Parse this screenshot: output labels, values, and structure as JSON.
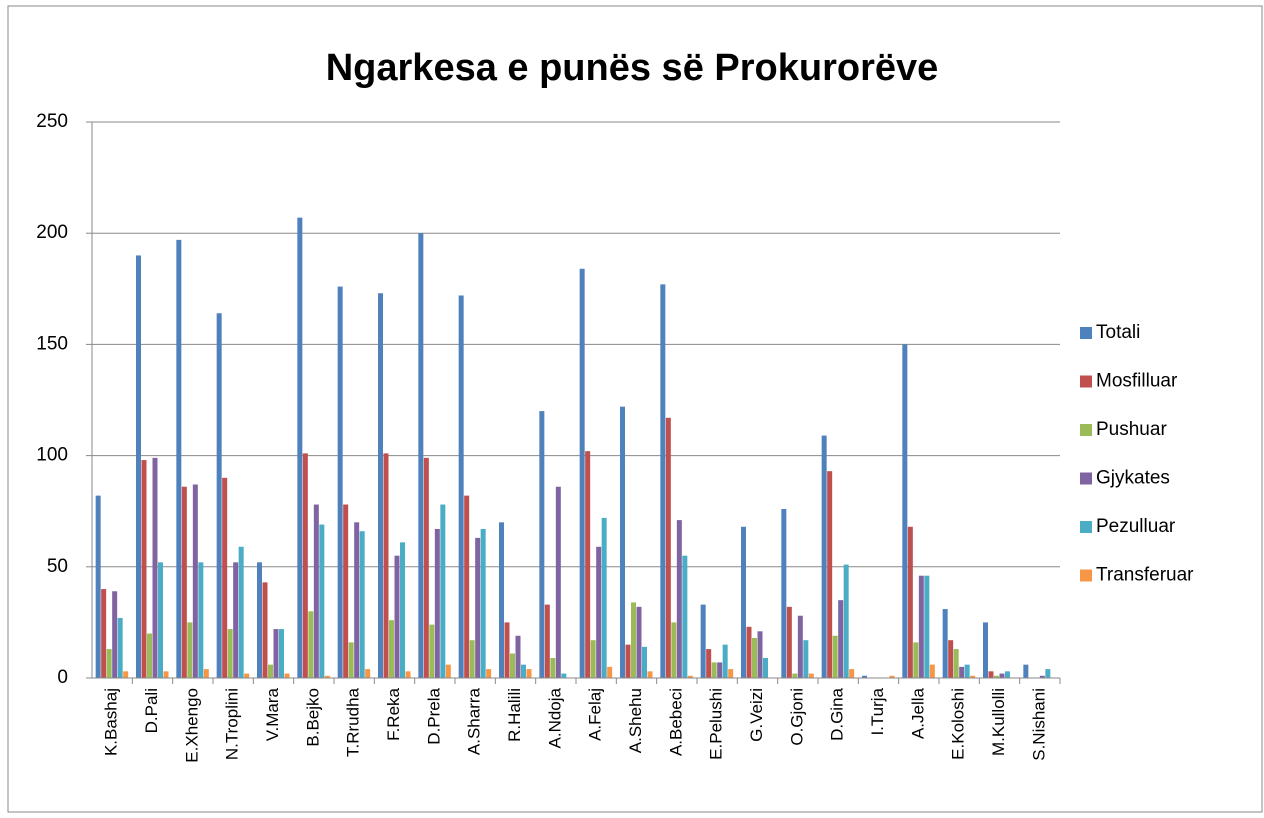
{
  "chart_data": {
    "type": "bar",
    "title": "Ngarkesa e punës së Prokurorëve",
    "categories": [
      "K.Bashaj",
      "D.Pali",
      "E.Xhengo",
      "N.Troplini",
      "V.Mara",
      "B.Bejko",
      "T.Rrudha",
      "F.Reka",
      "D.Prela",
      "A.Sharra",
      "R.Halili",
      "A.Ndoja",
      "A.Felaj",
      "A.Shehu",
      "A.Bebeci",
      "E.Pelushi",
      "G.Veizi",
      "O.Gjoni",
      "D.Gina",
      "I.Turja",
      "A.Jella",
      "E.Koloshi",
      "M.Kullolli",
      "S.Nishani"
    ],
    "series": [
      {
        "name": "Totali",
        "color": "#4f81bd",
        "values": [
          82,
          190,
          197,
          164,
          52,
          207,
          176,
          173,
          200,
          172,
          70,
          120,
          184,
          122,
          177,
          33,
          68,
          76,
          109,
          1,
          150,
          31,
          25,
          6
        ]
      },
      {
        "name": "Mosfilluar",
        "color": "#c0504d",
        "values": [
          40,
          98,
          86,
          90,
          43,
          101,
          78,
          101,
          99,
          82,
          25,
          33,
          102,
          15,
          117,
          13,
          23,
          32,
          93,
          0,
          68,
          17,
          3,
          0
        ]
      },
      {
        "name": "Pushuar",
        "color": "#9bbb59",
        "values": [
          13,
          20,
          25,
          22,
          6,
          30,
          16,
          26,
          24,
          17,
          11,
          9,
          17,
          34,
          25,
          7,
          18,
          2,
          19,
          0,
          16,
          13,
          1,
          0
        ]
      },
      {
        "name": "Gjykates",
        "color": "#8064a2",
        "values": [
          39,
          99,
          87,
          52,
          22,
          78,
          70,
          55,
          67,
          63,
          19,
          86,
          59,
          32,
          71,
          7,
          21,
          28,
          35,
          0,
          46,
          5,
          2,
          1
        ]
      },
      {
        "name": "Pezulluar",
        "color": "#4bacc6",
        "values": [
          27,
          52,
          52,
          59,
          22,
          69,
          66,
          61,
          78,
          67,
          6,
          2,
          72,
          14,
          55,
          15,
          9,
          17,
          51,
          0,
          46,
          6,
          3,
          4
        ]
      },
      {
        "name": "Transferuar",
        "color": "#f79646",
        "values": [
          3,
          3,
          4,
          2,
          2,
          1,
          4,
          3,
          6,
          4,
          4,
          0,
          5,
          3,
          1,
          4,
          0,
          2,
          4,
          1,
          6,
          1,
          0,
          0
        ]
      }
    ],
    "ylim": [
      0,
      250
    ],
    "yticks": [
      0,
      50,
      100,
      150,
      200,
      250
    ],
    "grid": true,
    "legend": "right"
  }
}
